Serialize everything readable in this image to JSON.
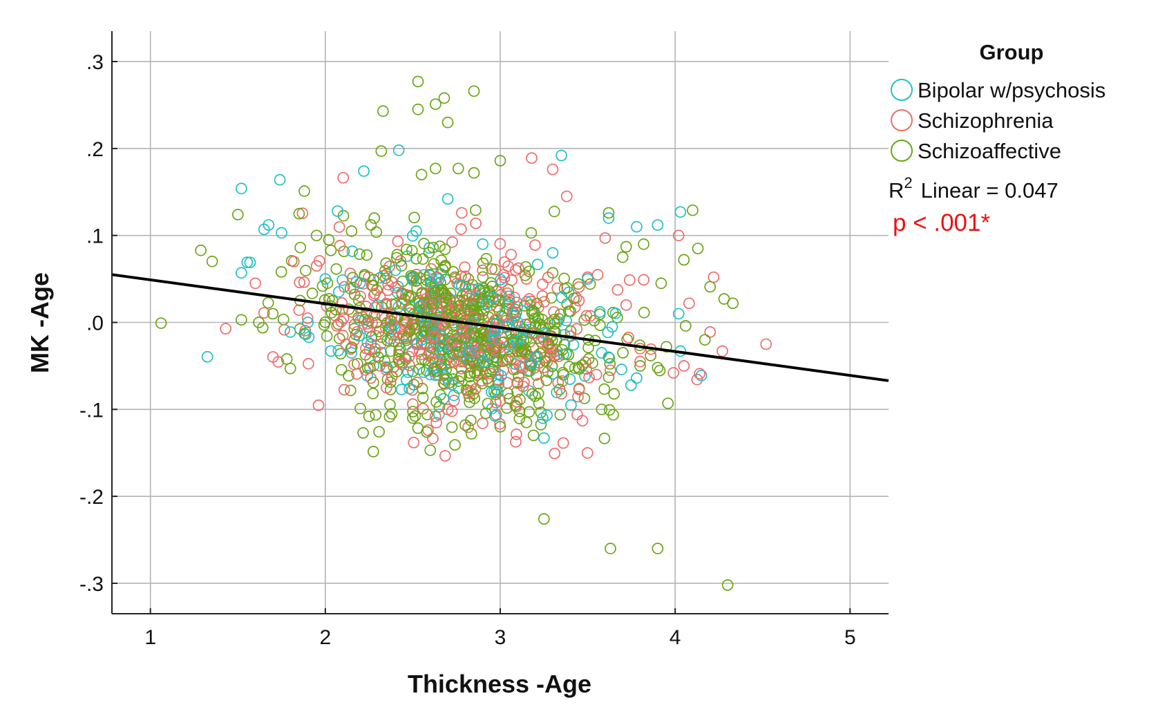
{
  "chart_data": {
    "type": "scatter",
    "title": "",
    "xlabel": "Thickness -Age",
    "ylabel": "MK -Age",
    "xlim": [
      0.78,
      5.22
    ],
    "ylim": [
      -0.335,
      0.335
    ],
    "x_ticks": [
      1,
      2,
      3,
      4,
      5
    ],
    "x_tick_labels": [
      "1",
      "2",
      "3",
      "4",
      "5"
    ],
    "y_ticks": [
      0.3,
      0.2,
      0.1,
      0.0,
      -0.1,
      -0.2,
      -0.3
    ],
    "y_tick_labels": [
      ".3",
      ".2",
      ".1",
      ".0",
      "-.1",
      "-.2",
      "-.3"
    ],
    "grid": true,
    "legend": {
      "title": "Group",
      "placement": "right",
      "entries": [
        {
          "name": "Bipolar w/psychosis",
          "color": "#1fbfc8"
        },
        {
          "name": "Schizophrenia",
          "color": "#f06a6a"
        },
        {
          "name": "Schizoaffective",
          "color": "#6aa514"
        }
      ]
    },
    "fit_line": {
      "label": "Linear",
      "r2_prefix": "R",
      "r2_sup": "2",
      "r2_text": "Linear = 0.047",
      "x": [
        0.78,
        5.22
      ],
      "y": [
        0.055,
        -0.067
      ],
      "color": "#000000"
    },
    "significance": {
      "text": "p < .001*",
      "color": "#ee1111"
    },
    "cloud": {
      "center_x": 2.75,
      "center_y": -0.01,
      "spread_x": 0.42,
      "spread_y": 0.045,
      "count": 1100
    },
    "series": [
      {
        "name": "Bipolar w/psychosis",
        "color": "#1fbfc8",
        "points": [
          [
            1.52,
            0.154
          ],
          [
            1.74,
            0.164
          ],
          [
            1.52,
            0.057
          ],
          [
            1.65,
            0.107
          ],
          [
            1.75,
            0.103
          ],
          [
            1.57,
            0.069
          ],
          [
            1.8,
            -0.011
          ],
          [
            2.07,
            0.128
          ],
          [
            2.22,
            0.174
          ],
          [
            2.42,
            0.198
          ],
          [
            3.35,
            0.192
          ],
          [
            2.7,
            0.142
          ],
          [
            2.52,
            0.105
          ],
          [
            2.9,
            0.09
          ],
          [
            3.62,
            0.12
          ],
          [
            3.78,
            0.11
          ],
          [
            3.9,
            0.112
          ],
          [
            4.03,
            0.127
          ],
          [
            3.5,
            0.05
          ],
          [
            3.57,
            0.012
          ],
          [
            3.58,
            -0.035
          ],
          [
            3.64,
            -0.005
          ],
          [
            3.78,
            -0.064
          ],
          [
            4.02,
            0.01
          ],
          [
            4.03,
            -0.033
          ],
          [
            4.15,
            -0.061
          ],
          [
            3.25,
            -0.133
          ],
          [
            2.48,
            -0.076
          ],
          [
            2.15,
            -0.035
          ],
          [
            2.3,
            0.02
          ],
          [
            2.55,
            -0.02
          ],
          [
            2.65,
            0.05
          ],
          [
            2.85,
            0.0
          ],
          [
            3.05,
            0.03
          ],
          [
            3.2,
            -0.04
          ],
          [
            3.3,
            0.08
          ],
          [
            2.4,
            0.06
          ],
          [
            2.6,
            -0.06
          ],
          [
            2.95,
            -0.08
          ],
          [
            3.1,
            0.0
          ],
          [
            2.0,
            0.05
          ],
          [
            1.9,
            0.0
          ]
        ]
      },
      {
        "name": "Schizophrenia",
        "color": "#f06a6a",
        "points": [
          [
            3.18,
            0.189
          ],
          [
            3.3,
            0.176
          ],
          [
            3.38,
            0.145
          ],
          [
            2.78,
            0.126
          ],
          [
            2.86,
            0.114
          ],
          [
            3.6,
            0.097
          ],
          [
            3.82,
            0.049
          ],
          [
            4.02,
            0.1
          ],
          [
            4.22,
            0.052
          ],
          [
            4.52,
            -0.025
          ],
          [
            4.27,
            -0.033
          ],
          [
            4.2,
            -0.011
          ],
          [
            4.14,
            -0.059
          ],
          [
            4.05,
            -0.05
          ],
          [
            3.99,
            -0.058
          ],
          [
            3.8,
            -0.045
          ],
          [
            3.63,
            -0.055
          ],
          [
            3.47,
            -0.113
          ],
          [
            3.35,
            -0.082
          ],
          [
            1.6,
            0.045
          ],
          [
            1.65,
            0.011
          ],
          [
            1.82,
            0.07
          ],
          [
            2.5,
            -0.094
          ],
          [
            2.7,
            -0.1
          ],
          [
            3.0,
            -0.09
          ],
          [
            3.1,
            -0.07
          ],
          [
            2.35,
            -0.075
          ],
          [
            3.72,
            0.02
          ],
          [
            4.08,
            0.022
          ],
          [
            2.2,
            0.03
          ],
          [
            2.4,
            0.04
          ],
          [
            2.9,
            0.06
          ],
          [
            3.15,
            0.05
          ],
          [
            2.6,
            0.02
          ],
          [
            2.75,
            -0.03
          ],
          [
            3.25,
            -0.02
          ],
          [
            1.95,
            0.065
          ],
          [
            2.1,
            -0.015
          ],
          [
            3.45,
            0.025
          ],
          [
            3.55,
            -0.06
          ]
        ]
      },
      {
        "name": "Schizoaffective",
        "color": "#6aa514",
        "points": [
          [
            2.53,
            0.277
          ],
          [
            2.85,
            0.266
          ],
          [
            2.68,
            0.258
          ],
          [
            2.63,
            0.251
          ],
          [
            2.53,
            0.245
          ],
          [
            2.33,
            0.243
          ],
          [
            2.7,
            0.23
          ],
          [
            2.32,
            0.197
          ],
          [
            3.0,
            0.186
          ],
          [
            2.63,
            0.177
          ],
          [
            2.76,
            0.177
          ],
          [
            2.85,
            0.172
          ],
          [
            2.55,
            0.17
          ],
          [
            1.88,
            0.151
          ],
          [
            1.5,
            0.124
          ],
          [
            1.85,
            0.125
          ],
          [
            3.62,
            0.126
          ],
          [
            4.1,
            0.129
          ],
          [
            4.13,
            0.085
          ],
          [
            4.05,
            0.072
          ],
          [
            3.82,
            0.09
          ],
          [
            3.72,
            0.087
          ],
          [
            3.7,
            0.075
          ],
          [
            3.3,
            0.057
          ],
          [
            3.92,
            0.045
          ],
          [
            4.2,
            0.041
          ],
          [
            4.33,
            0.022
          ],
          [
            4.28,
            0.027
          ],
          [
            4.17,
            -0.02
          ],
          [
            4.06,
            -0.004
          ],
          [
            3.95,
            -0.028
          ],
          [
            3.9,
            -0.052
          ],
          [
            3.8,
            -0.05
          ],
          [
            3.62,
            -0.063
          ],
          [
            3.58,
            -0.1
          ],
          [
            3.25,
            -0.226
          ],
          [
            3.63,
            -0.26
          ],
          [
            3.9,
            -0.26
          ],
          [
            4.3,
            -0.302
          ],
          [
            2.6,
            -0.147
          ],
          [
            2.58,
            -0.126
          ],
          [
            2.38,
            -0.105
          ],
          [
            2.2,
            -0.099
          ],
          [
            2.25,
            -0.108
          ],
          [
            1.78,
            -0.042
          ],
          [
            1.8,
            -0.053
          ],
          [
            1.52,
            0.003
          ],
          [
            1.7,
            0.01
          ],
          [
            1.62,
            0.0
          ],
          [
            2.5,
            -0.11
          ],
          [
            2.8,
            -0.118
          ],
          [
            3.0,
            -0.12
          ],
          [
            3.15,
            -0.115
          ],
          [
            1.95,
            0.1
          ],
          [
            2.02,
            0.095
          ],
          [
            2.15,
            0.105
          ],
          [
            2.28,
            0.12
          ]
        ]
      }
    ]
  }
}
